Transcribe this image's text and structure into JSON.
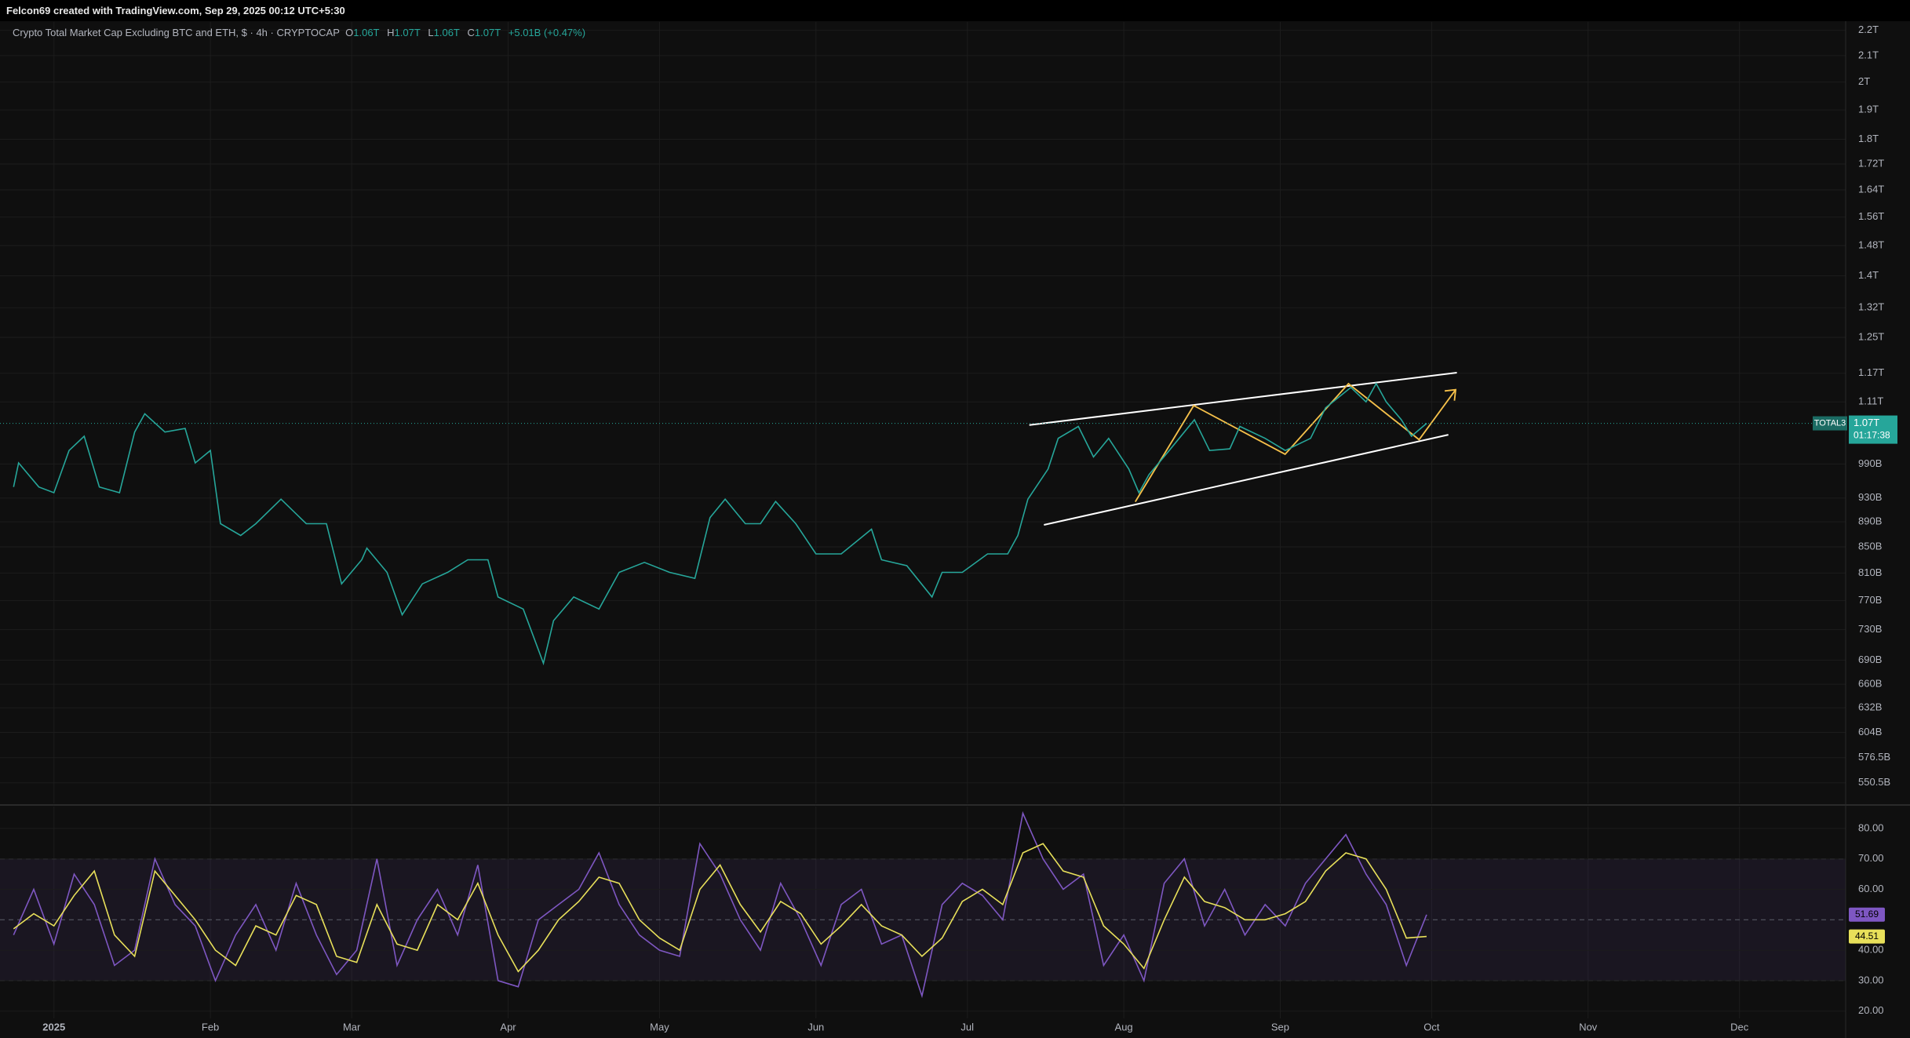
{
  "header": {
    "credit": "Felcon69 created with TradingView.com, Sep 29, 2025 00:12 UTC+5:30",
    "legend": {
      "symbol": "Crypto Total Market Cap Excluding BTC and ETH, $ · 4h · CRYPTOCAP",
      "open_label": "O",
      "open": "1.06T",
      "high_label": "H",
      "high": "1.07T",
      "low_label": "L",
      "low": "1.06T",
      "close_label": "C",
      "close": "1.07T",
      "change": "+5.01B (+0.47%)"
    }
  },
  "price_tag": {
    "symbol": "TOTAL3",
    "price": "1.07T",
    "countdown": "01:17:38"
  },
  "chart_data": [
    {
      "type": "line",
      "log": true,
      "color": "#26a69a",
      "grid": true,
      "x": [
        -8,
        -7,
        -3,
        0,
        3,
        6,
        9,
        13,
        16,
        18,
        22,
        26,
        28,
        31,
        33,
        37,
        40,
        45,
        50,
        54,
        57,
        61,
        62,
        66,
        69,
        73,
        78,
        82,
        86,
        88,
        93,
        97,
        99,
        103,
        108,
        112,
        117,
        122,
        127,
        130,
        133,
        137,
        140,
        143,
        147,
        151,
        156,
        162,
        164,
        169,
        174,
        176,
        180,
        185,
        189,
        191,
        193,
        197,
        199,
        203,
        206,
        209,
        213,
        215,
        217,
        221,
        226,
        229,
        233,
        235,
        240,
        244,
        249,
        252,
        257,
        260,
        262,
        264,
        267,
        269,
        272
      ],
      "values": [
        949,
        992,
        949,
        939,
        1015,
        1042,
        949,
        939,
        1050,
        1086,
        1050,
        1057,
        992,
        1015,
        887,
        868,
        887,
        928,
        887,
        887,
        794,
        830,
        848,
        811,
        750,
        794,
        811,
        830,
        830,
        775,
        758,
        686,
        742,
        775,
        758,
        811,
        826,
        811,
        802,
        897,
        928,
        887,
        887,
        924,
        887,
        839,
        839,
        878,
        830,
        821,
        775,
        811,
        811,
        839,
        839,
        868,
        928,
        981,
        1038,
        1061,
        1003,
        1038,
        981,
        939,
        971,
        1015,
        1074,
        1015,
        1018,
        1061,
        1038,
        1015,
        1038,
        1098,
        1140,
        1110,
        1148,
        1110,
        1074,
        1042,
        1067
      ],
      "xlim": [
        -9,
        355
      ],
      "xticks": [
        {
          "value": 0,
          "label": "2025"
        },
        {
          "value": 31,
          "label": "Feb"
        },
        {
          "value": 59,
          "label": "Mar"
        },
        {
          "value": 90,
          "label": "Apr"
        },
        {
          "value": 120,
          "label": "May"
        },
        {
          "value": 151,
          "label": "Jun"
        },
        {
          "value": 181,
          "label": "Jul"
        },
        {
          "value": 212,
          "label": "Aug"
        },
        {
          "value": 243,
          "label": "Sep"
        },
        {
          "value": 273,
          "label": "Oct"
        },
        {
          "value": 304,
          "label": "Nov"
        },
        {
          "value": 334,
          "label": "Dec"
        }
      ],
      "ylim": [
        530,
        2234
      ],
      "yticks": [
        {
          "value": 2200,
          "label": "2.2T"
        },
        {
          "value": 2100,
          "label": "2.1T"
        },
        {
          "value": 2000,
          "label": "2T"
        },
        {
          "value": 1900,
          "label": "1.9T"
        },
        {
          "value": 1800,
          "label": "1.8T"
        },
        {
          "value": 1720,
          "label": "1.72T"
        },
        {
          "value": 1640,
          "label": "1.64T"
        },
        {
          "value": 1560,
          "label": "1.56T"
        },
        {
          "value": 1480,
          "label": "1.48T"
        },
        {
          "value": 1400,
          "label": "1.4T"
        },
        {
          "value": 1320,
          "label": "1.32T"
        },
        {
          "value": 1250,
          "label": "1.25T"
        },
        {
          "value": 1170,
          "label": "1.17T"
        },
        {
          "value": 1110,
          "label": "1.11T"
        },
        {
          "value": 990,
          "label": "990B"
        },
        {
          "value": 930,
          "label": "930B"
        },
        {
          "value": 890,
          "label": "890B"
        },
        {
          "value": 850,
          "label": "850B"
        },
        {
          "value": 810,
          "label": "810B"
        },
        {
          "value": 770,
          "label": "770B"
        },
        {
          "value": 730,
          "label": "730B"
        },
        {
          "value": 690,
          "label": "690B"
        },
        {
          "value": 660,
          "label": "660B"
        },
        {
          "value": 632,
          "label": "632B"
        },
        {
          "value": 604,
          "label": "604B"
        },
        {
          "value": 576.5,
          "label": "576.5B"
        },
        {
          "value": 550.5,
          "label": "550.5B"
        }
      ]
    },
    {
      "type": "line",
      "grid": true,
      "band": [
        30,
        70
      ],
      "midline": 50,
      "x": [
        -8,
        -4,
        0,
        4,
        8,
        12,
        16,
        20,
        24,
        28,
        32,
        36,
        40,
        44,
        48,
        52,
        56,
        60,
        64,
        68,
        72,
        76,
        80,
        84,
        88,
        92,
        96,
        100,
        104,
        108,
        112,
        116,
        120,
        124,
        128,
        132,
        136,
        140,
        144,
        148,
        152,
        156,
        160,
        164,
        168,
        172,
        176,
        180,
        184,
        188,
        192,
        196,
        200,
        204,
        208,
        212,
        216,
        220,
        224,
        228,
        232,
        236,
        240,
        244,
        248,
        252,
        256,
        260,
        264,
        268,
        272
      ],
      "series": [
        {
          "color": "#7e57c2",
          "values": [
            45,
            60,
            42,
            65,
            55,
            35,
            40,
            70,
            55,
            48,
            30,
            45,
            55,
            40,
            62,
            45,
            32,
            40,
            70,
            35,
            50,
            60,
            45,
            68,
            30,
            28,
            50,
            55,
            60,
            72,
            55,
            45,
            40,
            38,
            75,
            65,
            50,
            40,
            62,
            50,
            35,
            55,
            60,
            42,
            45,
            25,
            55,
            62,
            58,
            50,
            85,
            70,
            60,
            65,
            35,
            45,
            30,
            62,
            70,
            48,
            60,
            45,
            55,
            48,
            62,
            70,
            78,
            65,
            55,
            35,
            51.69
          ]
        },
        {
          "color": "#e8e05a",
          "values": [
            47,
            52,
            48,
            58,
            66,
            45,
            38,
            66,
            58,
            50,
            40,
            35,
            48,
            45,
            58,
            55,
            38,
            36,
            55,
            42,
            40,
            55,
            50,
            62,
            45,
            33,
            40,
            50,
            56,
            64,
            62,
            50,
            44,
            40,
            60,
            68,
            55,
            46,
            56,
            52,
            42,
            48,
            55,
            48,
            45,
            38,
            44,
            56,
            60,
            55,
            72,
            75,
            66,
            64,
            48,
            42,
            34,
            50,
            64,
            56,
            54,
            50,
            50,
            52,
            56,
            66,
            72,
            70,
            60,
            44,
            44.51
          ]
        }
      ],
      "xlim": [
        -9,
        355
      ],
      "ylim": [
        17.6,
        87.2
      ],
      "yticks": [
        {
          "value": 80,
          "label": "80.00"
        },
        {
          "value": 70,
          "label": "70.00"
        },
        {
          "value": 60,
          "label": "60.00"
        },
        {
          "value": 40,
          "label": "40.00"
        },
        {
          "value": 30,
          "label": "30.00"
        },
        {
          "value": 20,
          "label": "20.00"
        }
      ]
    }
  ]
}
